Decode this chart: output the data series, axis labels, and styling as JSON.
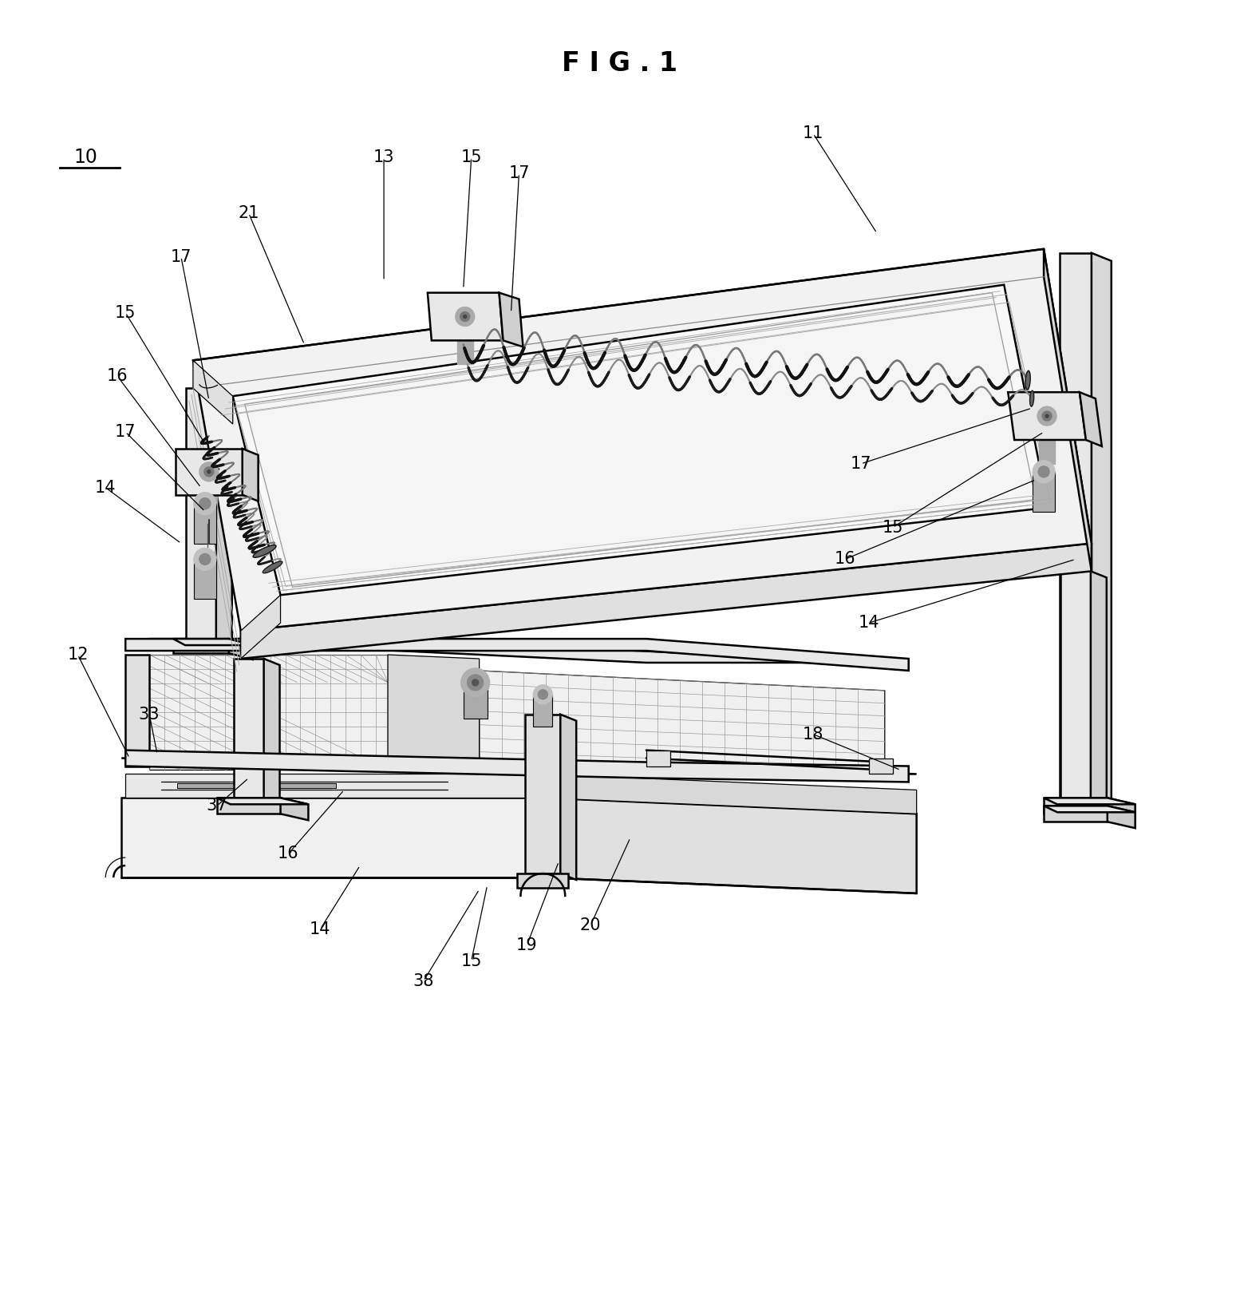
{
  "title": "F I G . 1",
  "background_color": "#ffffff",
  "label_fontsize": 15,
  "label_color": "#000000",
  "line_color": "#000000",
  "lw_main": 1.8,
  "lw_thin": 0.9,
  "lw_thick": 2.5
}
